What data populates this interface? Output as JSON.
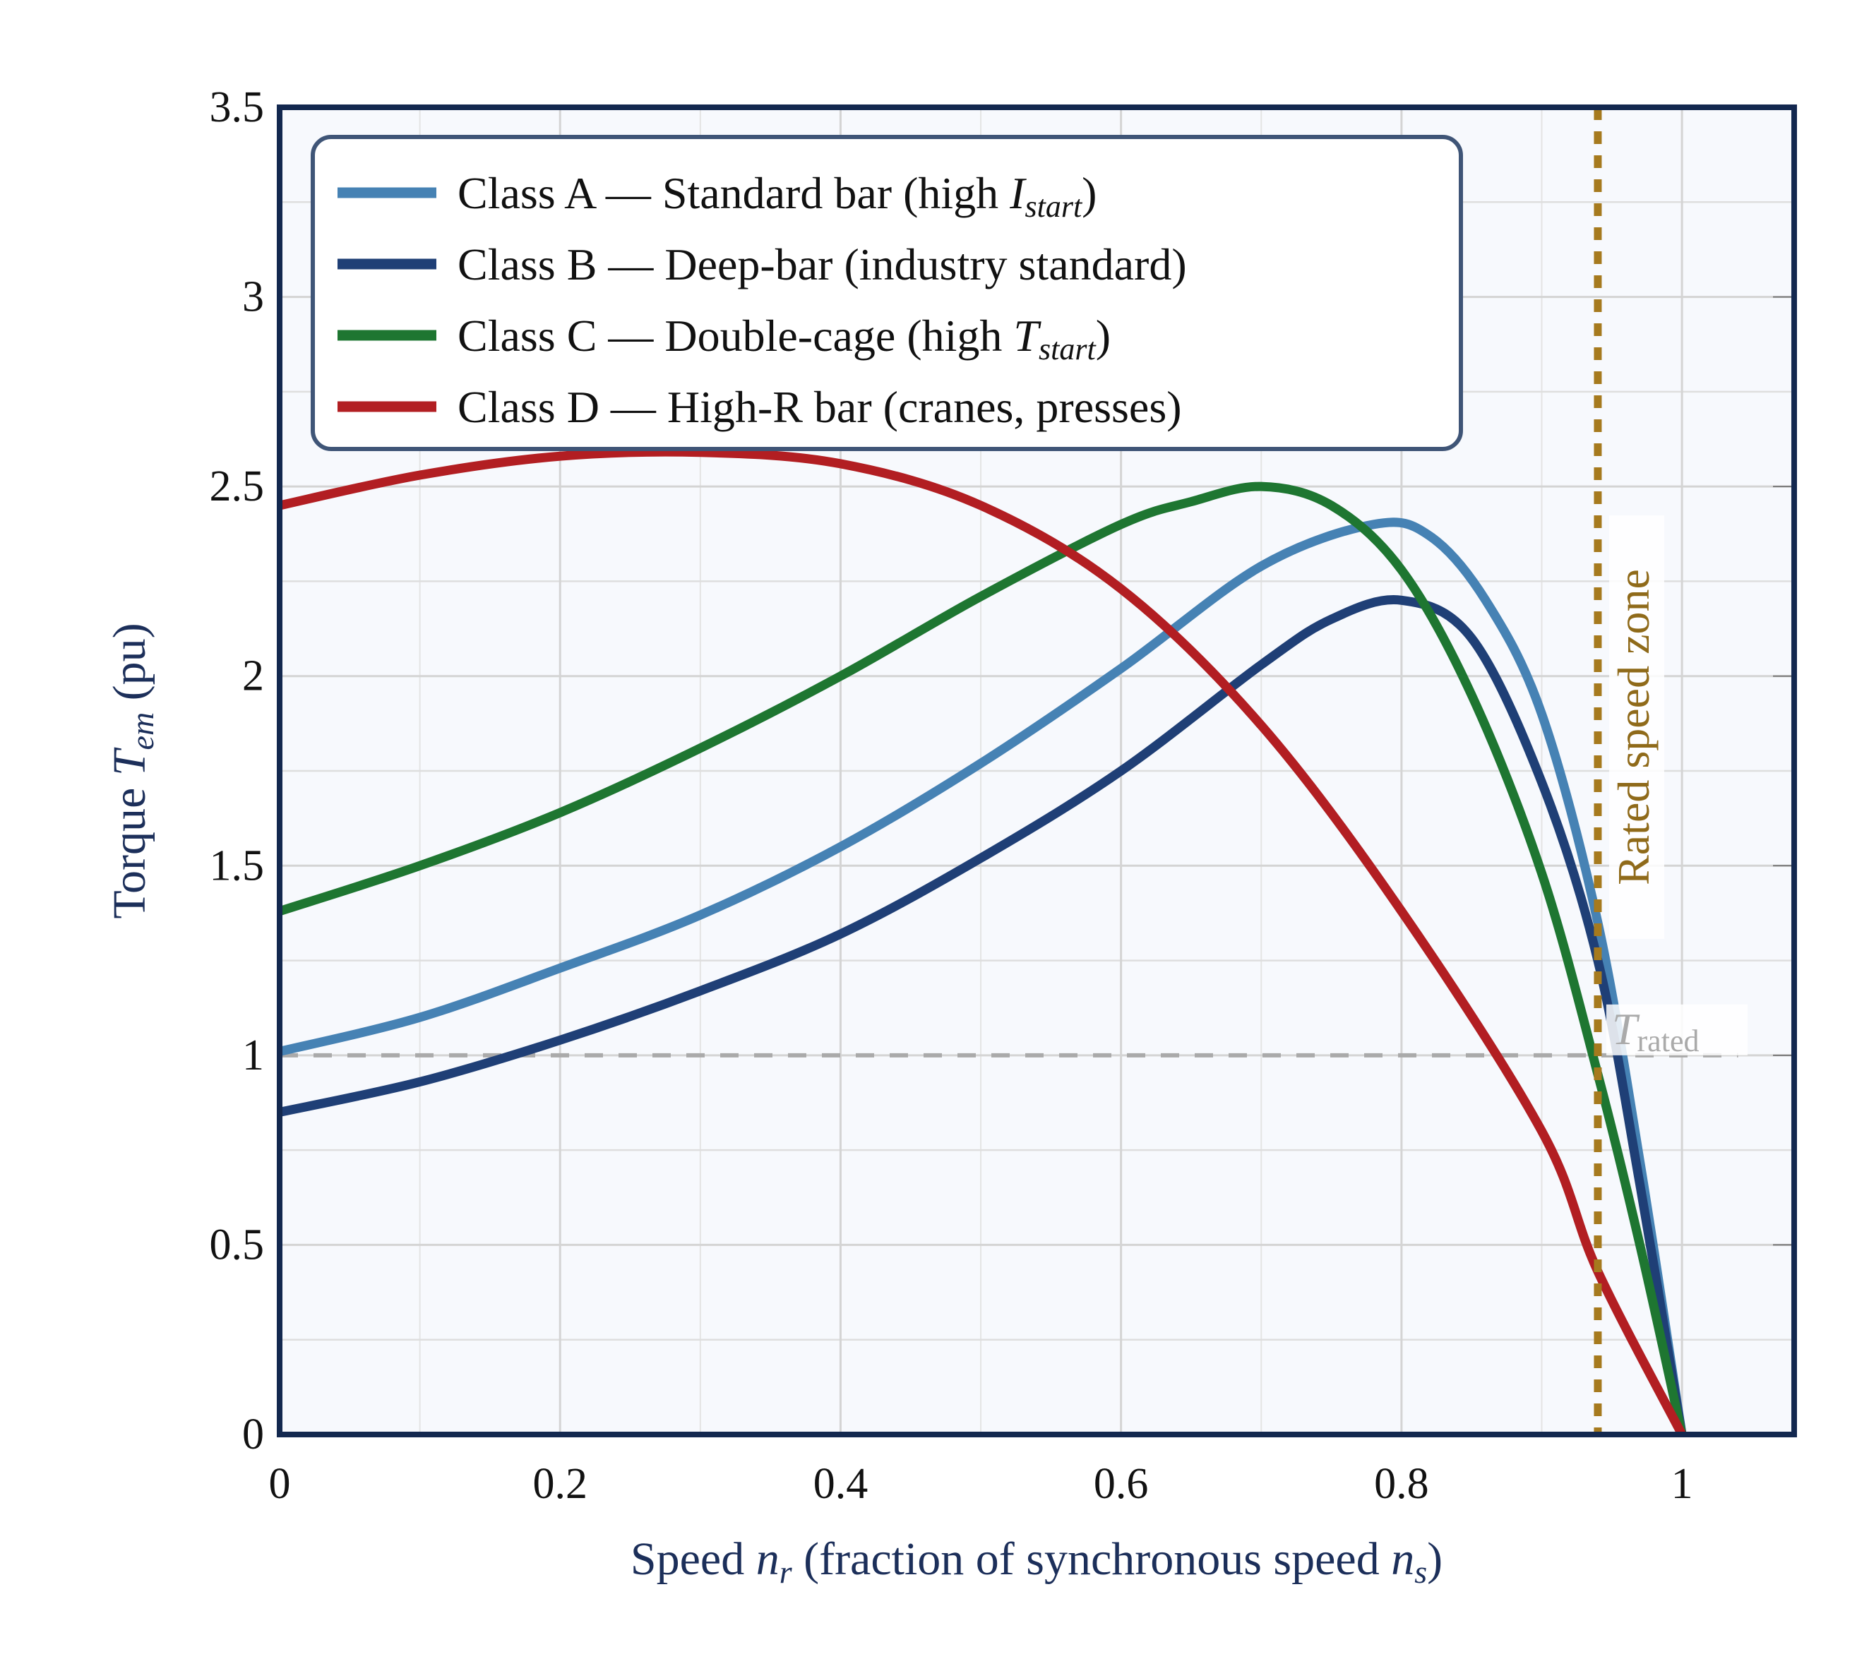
{
  "chart_data": {
    "type": "line",
    "xlabel": {
      "pre": "Speed ",
      "sym": "n",
      "sub": "r",
      "mid": " (fraction of synchronous speed ",
      "sym2": "n",
      "sub2": "s",
      "post": ")"
    },
    "ylabel": {
      "pre": "Torque ",
      "sym": "T",
      "sub": "em",
      "post": " (pu)"
    },
    "xlim": [
      0,
      1.08
    ],
    "ylim": [
      0,
      3.5
    ],
    "xticks": [
      "0",
      "0.2",
      "0.4",
      "0.6",
      "0.8",
      "1"
    ],
    "xtick_values": [
      0,
      0.2,
      0.4,
      0.6,
      0.8,
      1
    ],
    "yticks": [
      "0",
      "0.5",
      "1",
      "1.5",
      "2",
      "2.5",
      "3",
      "3.5"
    ],
    "ytick_values": [
      0,
      0.5,
      1,
      1.5,
      2,
      2.5,
      3,
      3.5
    ],
    "grid": true,
    "legend_placement": "top-left",
    "series": [
      {
        "name": "Class A — Standard bar (high I_start)",
        "legend": {
          "pre": "Class A — Standard bar (high ",
          "sym": "I",
          "sub": "start",
          "post": ")"
        },
        "color": "#4682b4",
        "x": [
          0,
          0.1,
          0.2,
          0.3,
          0.4,
          0.5,
          0.6,
          0.7,
          0.78,
          0.82,
          0.86,
          0.9,
          0.94,
          0.97,
          1.0
        ],
        "y": [
          1.01,
          1.1,
          1.23,
          1.37,
          1.55,
          1.77,
          2.02,
          2.29,
          2.4,
          2.37,
          2.2,
          1.9,
          1.35,
          0.72,
          0.0
        ]
      },
      {
        "name": "Class B — Deep-bar (industry standard)",
        "legend": {
          "pre": "Class B — Deep-bar (industry standard)",
          "sym": "",
          "sub": "",
          "post": ""
        },
        "color": "#1f3f76",
        "x": [
          0,
          0.1,
          0.2,
          0.3,
          0.4,
          0.5,
          0.6,
          0.7,
          0.75,
          0.8,
          0.85,
          0.9,
          0.94,
          0.97,
          1.0
        ],
        "y": [
          0.85,
          0.93,
          1.04,
          1.17,
          1.32,
          1.52,
          1.75,
          2.03,
          2.15,
          2.2,
          2.1,
          1.72,
          1.25,
          0.66,
          0.0
        ]
      },
      {
        "name": "Class C — Double-cage (high T_start)",
        "legend": {
          "pre": "Class C — Double-cage (high ",
          "sym": "T",
          "sub": "start",
          "post": ")"
        },
        "color": "#1e7631",
        "x": [
          0,
          0.1,
          0.2,
          0.3,
          0.4,
          0.5,
          0.6,
          0.65,
          0.7,
          0.75,
          0.8,
          0.85,
          0.9,
          0.94,
          0.97,
          1.0
        ],
        "y": [
          1.38,
          1.5,
          1.64,
          1.81,
          2.0,
          2.21,
          2.4,
          2.46,
          2.5,
          2.45,
          2.28,
          1.95,
          1.48,
          0.95,
          0.5,
          0.0
        ]
      },
      {
        "name": "Class D — High-R bar (cranes, presses)",
        "legend": {
          "pre": "Class D — High-R bar (cranes, presses)",
          "sym": "",
          "sub": "",
          "post": ""
        },
        "color": "#b21e22",
        "x": [
          0,
          0.1,
          0.2,
          0.3,
          0.4,
          0.5,
          0.6,
          0.7,
          0.8,
          0.9,
          0.94,
          1.0
        ],
        "y": [
          2.45,
          2.53,
          2.58,
          2.59,
          2.56,
          2.45,
          2.23,
          1.87,
          1.38,
          0.8,
          0.43,
          0.0
        ]
      }
    ],
    "annotations": {
      "rated_speed": {
        "x": 0.94,
        "label": "Rated speed zone",
        "color": "#a67a1e"
      },
      "rated_torque": {
        "y": 1.0,
        "sym": "T",
        "sub": "rated",
        "color": "#aaaaaa"
      }
    },
    "colors": {
      "frame": "#13284f",
      "background": "#f7f9fd",
      "grid": "#d4d4d4",
      "legend_border": "#3f5577"
    }
  }
}
